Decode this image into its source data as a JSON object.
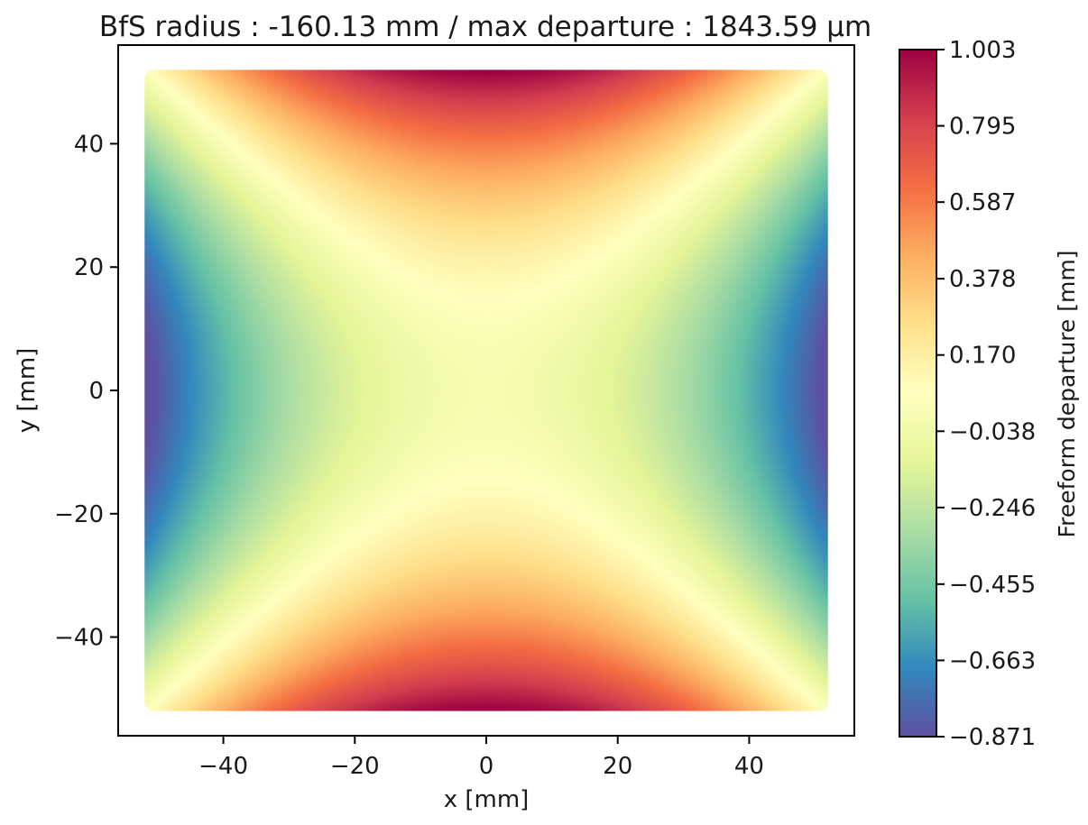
{
  "chart_data": {
    "type": "heatmap",
    "title": "BfS radius : -160.13 mm /  max departure : 1843.59 µm",
    "xlabel": "x [mm]",
    "ylabel": "y [mm]",
    "xlim": [
      -56,
      56
    ],
    "ylim": [
      -56,
      56
    ],
    "xticks": [
      -40,
      -20,
      0,
      20,
      40
    ],
    "yticks": [
      -40,
      -20,
      0,
      20,
      40
    ],
    "xtick_labels": [
      "−40",
      "−20",
      "0",
      "20",
      "40"
    ],
    "ytick_labels": [
      "−40",
      "−20",
      "0",
      "20",
      "40"
    ],
    "data_extent": {
      "x": [
        -52,
        52
      ],
      "y": [
        -52,
        52
      ]
    },
    "surface_model": "freeform departure ≈ a·(y² − x²) saddle; y-edges ≈ +0.9…+1.0 mm, x-edges ≈ −0.87 mm, centre ≈ 0",
    "grid": false,
    "colormap": "Spectral_r",
    "colormap_stops": [
      "#5e4fa2",
      "#3288bd",
      "#66c2a5",
      "#abdda4",
      "#e6f598",
      "#ffffbf",
      "#fee08b",
      "#fdae61",
      "#f46d43",
      "#d53e4f",
      "#9e0142"
    ],
    "colorbar": {
      "label": "Freeform departure [mm]",
      "min": -0.871,
      "max": 1.003,
      "ticks": [
        1.003,
        0.795,
        0.587,
        0.378,
        0.17,
        -0.038,
        -0.246,
        -0.455,
        -0.663,
        -0.871
      ],
      "tick_labels": [
        "1.003",
        "0.795",
        "0.587",
        "0.378",
        "0.170",
        "−0.038",
        "−0.246",
        "−0.455",
        "−0.663",
        "−0.871"
      ]
    }
  }
}
